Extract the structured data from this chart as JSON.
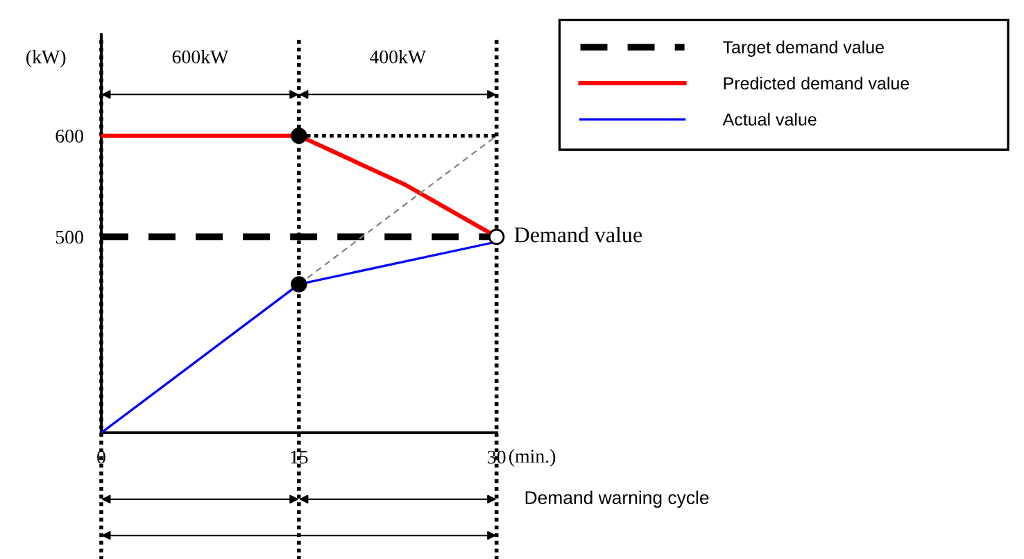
{
  "chart_data": {
    "type": "line",
    "xlabel": "(min.)",
    "ylabel": "(kW)",
    "xlim": [
      0,
      30
    ],
    "xticks": [
      0,
      15,
      30
    ],
    "ylim": [
      306,
      700
    ],
    "yticks": [
      500,
      600
    ],
    "series": [
      {
        "name": "Target demand value",
        "color": "#000000",
        "line_style": "dashed",
        "x": [
          0,
          30
        ],
        "values": [
          500,
          500
        ]
      },
      {
        "name": "Predicted demand value",
        "color": "#ff0000",
        "x": [
          0,
          15,
          23,
          30
        ],
        "values": [
          600,
          600,
          552,
          500
        ]
      },
      {
        "name": "Actual value",
        "color": "#0000ff",
        "x": [
          0,
          15,
          30
        ],
        "values": [
          306,
          453,
          495
        ]
      },
      {
        "color": "#808080",
        "line_style": "dashed",
        "x": [
          15,
          30
        ],
        "values": [
          453,
          600
        ]
      },
      {
        "color": "#000000",
        "line_style": "dotted",
        "x": [
          15,
          30
        ],
        "values": [
          600,
          600
        ]
      },
      {
        "type": "scatter",
        "marker": "circle",
        "x": [
          15,
          15,
          30
        ],
        "values": [
          600,
          453,
          500
        ],
        "colors": [
          "#000000",
          "#000000",
          "#ffffff"
        ]
      }
    ],
    "ref_lines": [
      {
        "axis": "x",
        "value": 0,
        "color": "#000000",
        "line_style": "dotted"
      },
      {
        "axis": "x",
        "value": 15,
        "color": "#000000",
        "line_style": "dotted"
      },
      {
        "axis": "x",
        "value": 30,
        "color": "#000000",
        "line_style": "dotted"
      }
    ],
    "annotations": [
      "600kW",
      "400kW",
      {
        "text": "Demand value",
        "x": 30,
        "y": 500
      },
      "Demand warning cycle"
    ],
    "legend": "top right"
  }
}
